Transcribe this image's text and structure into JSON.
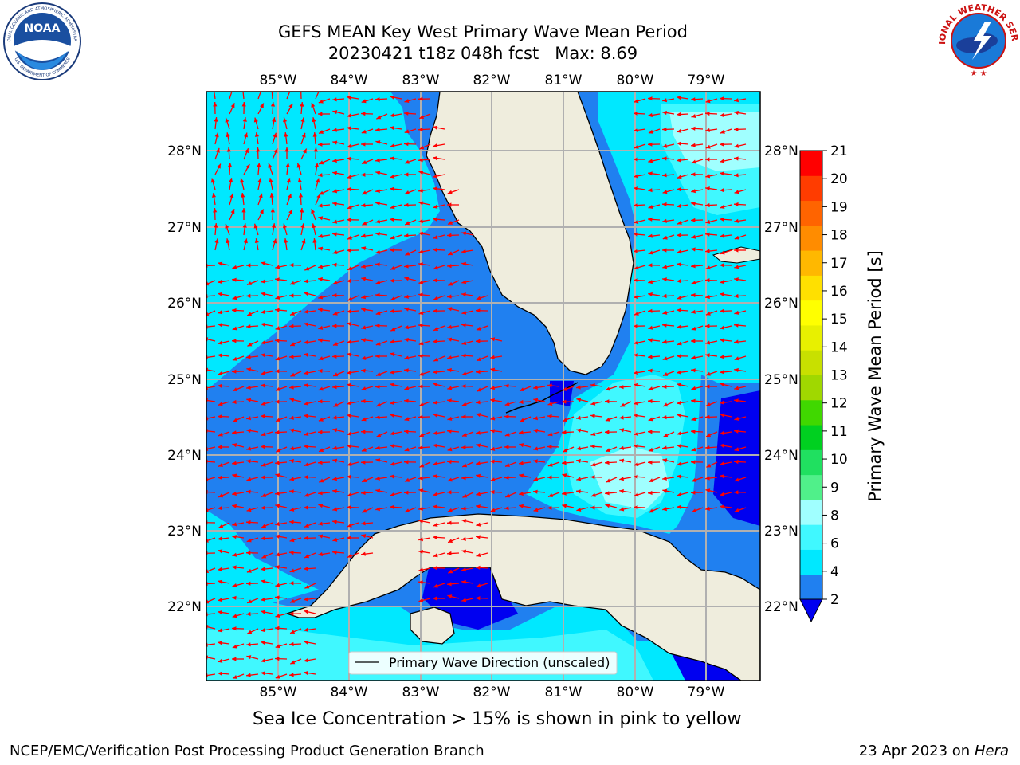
{
  "header": {
    "title_line1": "GEFS MEAN Key West Primary Wave Mean Period",
    "title_line2": "20230421 t18z 048h fcst   Max: 8.69"
  },
  "logos": {
    "left": {
      "text": "NOAA",
      "ring_top": "NATIONAL OCEANIC AND ATMOSPHERIC ADMINISTRATION",
      "ring_bottom": "U.S. DEPARTMENT OF COMMERCE"
    },
    "right": {
      "ring_text": "NATIONAL WEATHER SERVICE"
    }
  },
  "map": {
    "lon_ticks": [
      "85°W",
      "84°W",
      "83°W",
      "82°W",
      "81°W",
      "80°W",
      "79°W"
    ],
    "lat_ticks": [
      "28°N",
      "27°N",
      "26°N",
      "25°N",
      "24°N",
      "23°N",
      "22°N"
    ],
    "extent": {
      "lon_min": -86.0,
      "lon_max": -78.25,
      "lat_min": 21.0,
      "lat_max": 28.75
    },
    "legend_label": "Primary Wave Direction (unscaled)",
    "colors": {
      "land": "#efeddd",
      "arrow": "#ff0000",
      "grid": "#b0b0b0"
    }
  },
  "colorbar": {
    "label": "Primary Wave Mean Period [s]",
    "ticks": [
      "21",
      "20",
      "19",
      "18",
      "17",
      "16",
      "15",
      "14",
      "13",
      "12",
      "11",
      "10",
      "9",
      "8",
      "6",
      "4",
      "2"
    ],
    "colors": [
      "#2080f0",
      "#00e8ff",
      "#40f8ff",
      "#a0ffff",
      "#50f08a",
      "#20e060",
      "#00d020",
      "#40d800",
      "#a0d800",
      "#c8e000",
      "#e8f000",
      "#ffff00",
      "#ffe000",
      "#ffb800",
      "#ff8c00",
      "#ff6400",
      "#ff3c00",
      "#ff0000"
    ],
    "extend_color": "#0000f0"
  },
  "caption": "Sea Ice Concentration > 15% is shown in pink to yellow",
  "footer": {
    "left": "NCEP/EMC/Verification Post Processing Product Generation Branch",
    "right_date": "23 Apr 2023 on ",
    "right_machine": "Hera"
  }
}
